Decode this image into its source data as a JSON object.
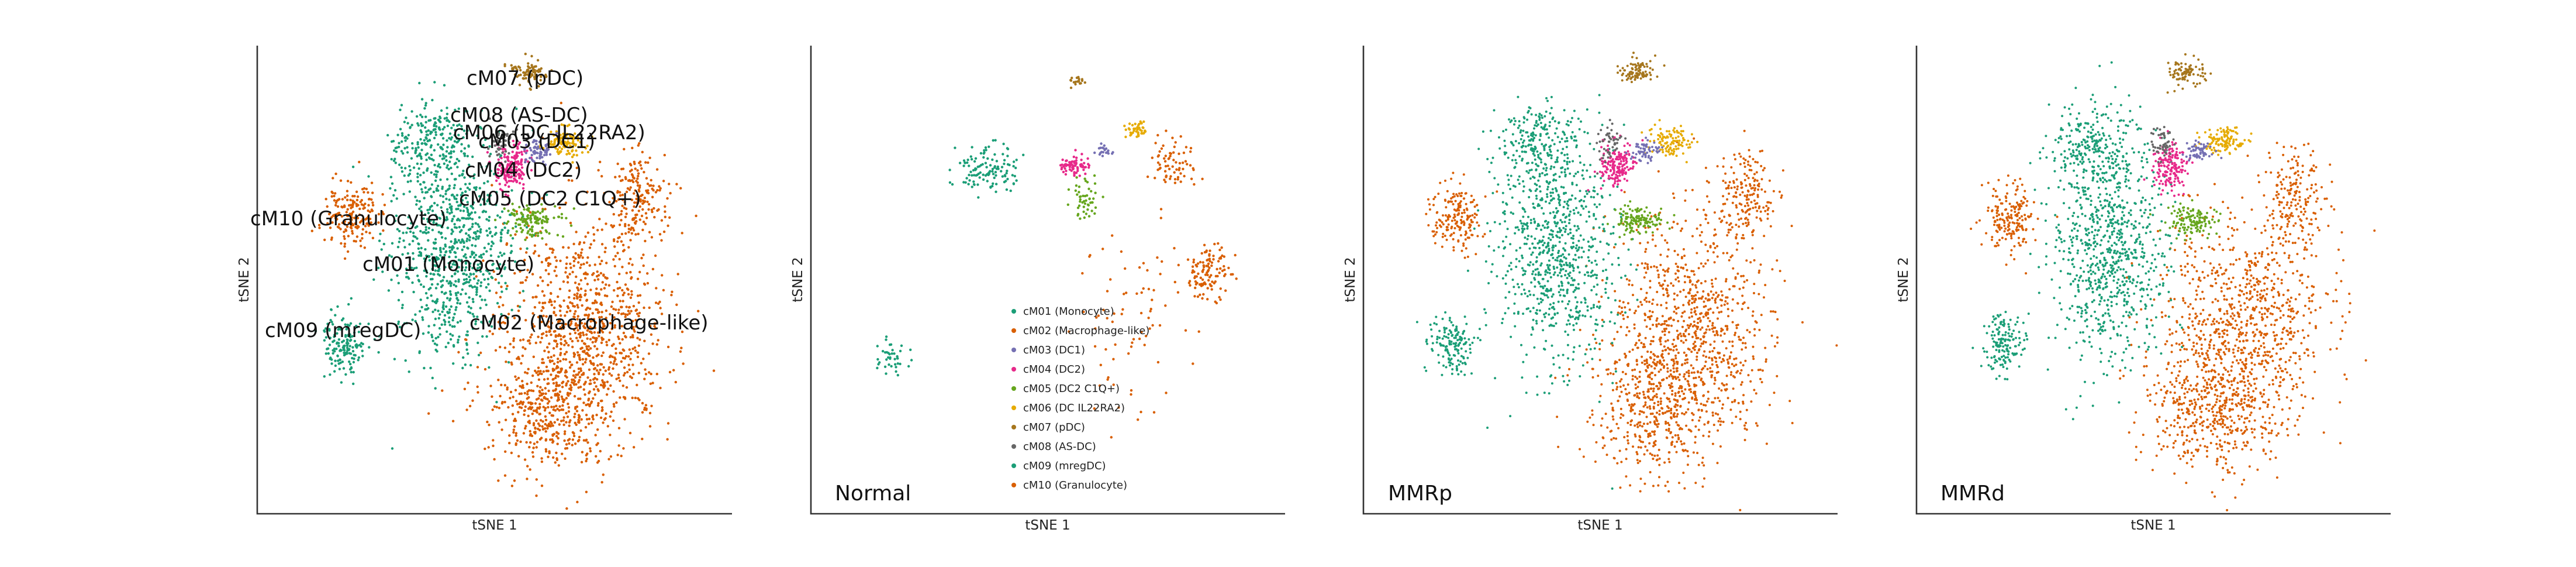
{
  "figure": {
    "x_axis_label": "tSNE 1",
    "y_axis_label": "tSNE 2"
  },
  "clusters": [
    {
      "id": "cM01",
      "name": "cM01 (Monocyte)",
      "color": "#1b9e77"
    },
    {
      "id": "cM02",
      "name": "cM02 (Macrophage-like)",
      "color": "#d95f02"
    },
    {
      "id": "cM03",
      "name": "cM03 (DC1)",
      "color": "#7570b3"
    },
    {
      "id": "cM04",
      "name": "cM04 (DC2)",
      "color": "#e7298a"
    },
    {
      "id": "cM05",
      "name": "cM05 (DC2 C1Q+)",
      "color": "#66a61e"
    },
    {
      "id": "cM06",
      "name": "cM06 (DC IL22RA2)",
      "color": "#e6ab02"
    },
    {
      "id": "cM07",
      "name": "cM07 (pDC)",
      "color": "#a6761d"
    },
    {
      "id": "cM08",
      "name": "cM08 (AS-DC)",
      "color": "#666666"
    },
    {
      "id": "cM09",
      "name": "cM09 (mregDC)",
      "color": "#1b9e77"
    },
    {
      "id": "cM10",
      "name": "cM10 (Granulocyte)",
      "color": "#d95f02"
    }
  ],
  "panels": [
    {
      "id": "all",
      "label": ""
    },
    {
      "id": "normal",
      "label": "Normal"
    },
    {
      "id": "mmrp",
      "label": "MMRp"
    },
    {
      "id": "mmrd",
      "label": "MMRd"
    }
  ],
  "chart_data": [
    {
      "type": "scatter",
      "title": "",
      "xlabel": "tSNE 1",
      "ylabel": "tSNE 2",
      "panel": "all",
      "grid": false,
      "annotations": [
        "cM07 (pDC)",
        "cM08 (AS-DC)",
        "cM06 (DC IL22RA2)",
        "cM03 (DC1)",
        "cM04 (DC2)",
        "cM05 (DC2 C1Q+)",
        "cM10 (Granulocyte)",
        "cM01 (Monocyte)",
        "cM02 (Macrophage-like)",
        "cM09 (mregDC)"
      ]
    },
    {
      "type": "scatter",
      "title": "",
      "xlabel": "tSNE 1",
      "ylabel": "tSNE 2",
      "panel": "Normal",
      "grid": false,
      "legend": {
        "placement": "lower-center",
        "entries": [
          "cM01 (Monocyte)",
          "cM02 (Macrophage-like)",
          "cM03 (DC1)",
          "cM04 (DC2)",
          "cM05 (DC2 C1Q+)",
          "cM06 (DC IL22RA2)",
          "cM07 (pDC)",
          "cM08 (AS-DC)",
          "cM09 (mregDC)",
          "cM10 (Granulocyte)"
        ]
      }
    },
    {
      "type": "scatter",
      "title": "",
      "xlabel": "tSNE 1",
      "ylabel": "tSNE 2",
      "panel": "MMRp",
      "grid": false
    },
    {
      "type": "scatter",
      "title": "",
      "xlabel": "tSNE 1",
      "ylabel": "tSNE 2",
      "panel": "MMRd",
      "grid": false
    }
  ]
}
